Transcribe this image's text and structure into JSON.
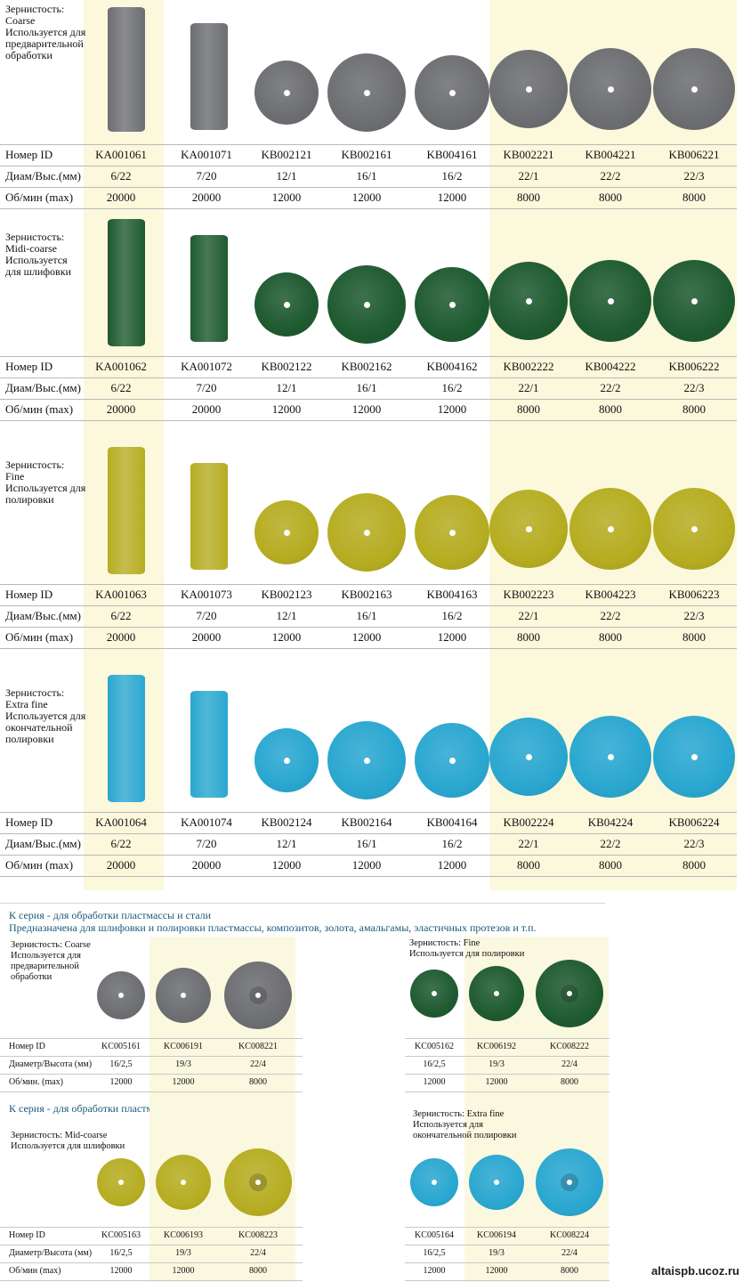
{
  "labels": {
    "id": "Номер ID",
    "dims": "Диам/Выс.(мм)",
    "rpm": "Об/мин (max)"
  },
  "labels_k": {
    "id": "Номер ID",
    "dims": "Диаметр/Высота (мм)",
    "rpm_a": "Об/мин. (max)",
    "rpm_b": "Об/мин (max)"
  },
  "dims": [
    "6/22",
    "7/20",
    "12/1",
    "16/1",
    "16/2",
    "22/1",
    "22/2",
    "22/3"
  ],
  "rpm": [
    "20000",
    "20000",
    "12000",
    "12000",
    "12000",
    "8000",
    "8000",
    "8000"
  ],
  "colors": {
    "coarse": "#6d6e72",
    "midi": "#1e5a30",
    "fine": "#b6ad22",
    "extra": "#2aa7d0"
  },
  "groups": [
    {
      "header": [
        "Зернистость:",
        "Coarse",
        "Используется для",
        "предварительной",
        "обработки"
      ],
      "ids": [
        "KA001061",
        "KA001071",
        "KB002121",
        "KB002161",
        "KB004161",
        "KB002221",
        "KB004221",
        "KB006221"
      ]
    },
    {
      "header": [
        "Зернистость:",
        "Midi-coarse",
        "Используется",
        "для шлифовки"
      ],
      "ids": [
        "KA001062",
        "KA001072",
        "KB002122",
        "KB002162",
        "KB004162",
        "KB002222",
        "KB004222",
        "KB006222"
      ]
    },
    {
      "header": [
        "Зернистость:",
        "Fine",
        "Используется для",
        "полировки"
      ],
      "ids": [
        "KA001063",
        "KA001073",
        "KB002123",
        "KB002163",
        "KB004163",
        "KB002223",
        "KB004223",
        "KB006223"
      ]
    },
    {
      "header": [
        "Зернистость:",
        "Extra fine",
        "Используется для",
        "окончательной",
        "полировки"
      ],
      "ids": [
        "KA001064",
        "KA001074",
        "KB002124",
        "KB002164",
        "KB004164",
        "KB002224",
        "KB04224",
        "KB006224"
      ]
    }
  ],
  "k_series": {
    "title1": "К серия - для обработки пластмассы и стали",
    "subtitle": "Предназначена для шлифовки и полировки пластмассы, композитов, золота, амальгамы, эластичных протезов и т.п.",
    "title2": "К серия - для обработки пластмассы и стали",
    "dims": [
      "16/2,5",
      "19/3",
      "22/4"
    ],
    "rpm": [
      "12000",
      "12000",
      "8000"
    ],
    "blocks": [
      {
        "header": [
          "Зернистость: Coarse",
          "Используется для",
          "предварительной",
          "обработки"
        ],
        "ids": [
          "KC005161",
          "KC006191",
          "KC008221"
        ]
      },
      {
        "header": [
          "Зернистость: Fine",
          "Используется для полировки"
        ],
        "ids": [
          "KC005162",
          "KC006192",
          "KC008222"
        ]
      },
      {
        "header": [
          "Зернистость: Mid-coarse",
          "Используется для шлифовки"
        ],
        "ids": [
          "KC005163",
          "KC006193",
          "KC008223"
        ]
      },
      {
        "header": [
          "Зернистость: Extra fine",
          "Используется для",
          "окончательной полировки"
        ],
        "ids": [
          "KC005164",
          "KC006194",
          "KC008224"
        ]
      }
    ]
  },
  "watermark": "altaispb.ucoz.ru"
}
